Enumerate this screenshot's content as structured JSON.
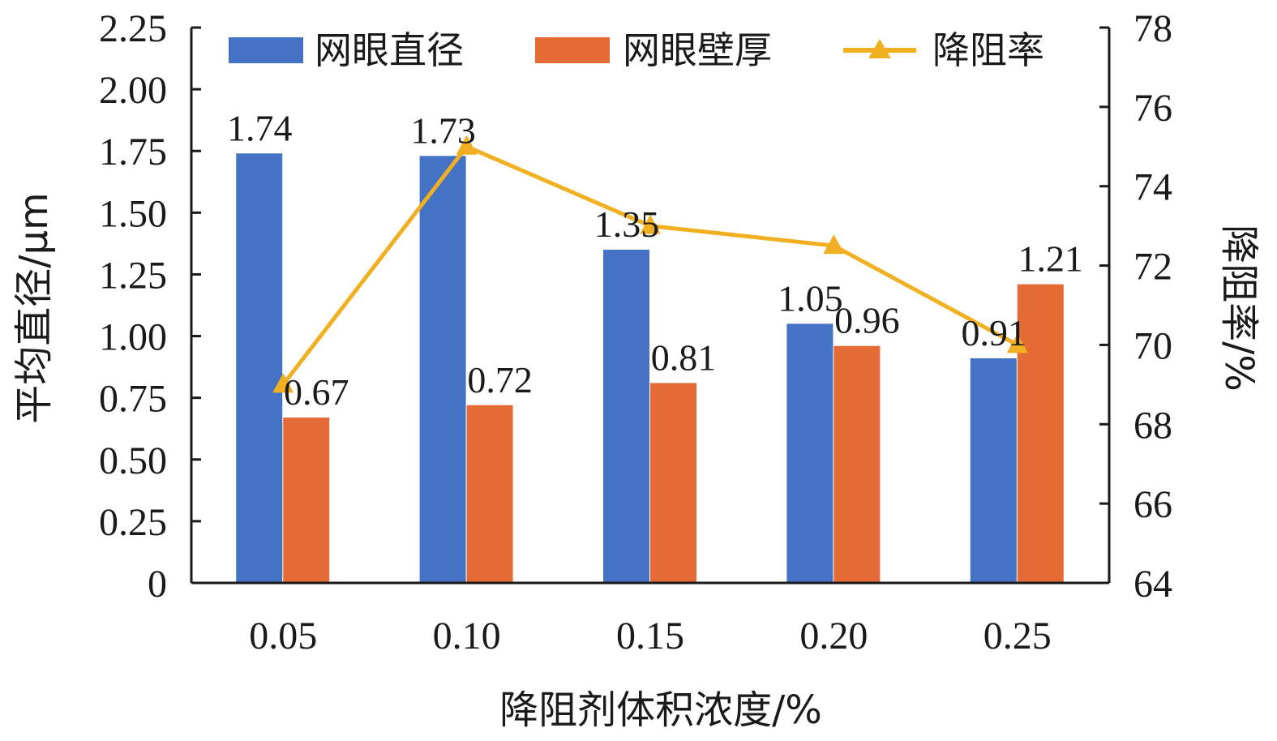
{
  "chart_data": {
    "type": "bar",
    "categories": [
      "0.05",
      "0.10",
      "0.15",
      "0.20",
      "0.25"
    ],
    "series": [
      {
        "name": "网眼直径",
        "kind": "bar",
        "axis": "left",
        "color": "#4472C4",
        "values": [
          1.74,
          1.73,
          1.35,
          1.05,
          0.91
        ],
        "labels": [
          "1.74",
          "1.73",
          "1.35",
          "1.05",
          "0.91"
        ]
      },
      {
        "name": "网眼壁厚",
        "kind": "bar",
        "axis": "left",
        "color": "#E46B35",
        "values": [
          0.67,
          0.72,
          0.81,
          0.96,
          1.21
        ],
        "labels": [
          "0.67",
          "0.72",
          "0.81",
          "0.96",
          "1.21"
        ]
      },
      {
        "name": "降阻率",
        "kind": "line",
        "axis": "right",
        "color": "#F0B022",
        "marker": "triangle",
        "values": [
          69.0,
          75.0,
          73.0,
          72.5,
          70.0
        ]
      }
    ],
    "xlabel": "降阻剂体积浓度/%",
    "ylabel": "平均直径/μm",
    "y2label": "降阻率/%",
    "ylim": [
      0,
      2.25
    ],
    "y2lim": [
      64,
      78
    ],
    "yticks": [
      "0",
      "0.25",
      "0.50",
      "0.75",
      "1.00",
      "1.25",
      "1.50",
      "1.75",
      "2.00",
      "2.25"
    ],
    "y2ticks": [
      "64",
      "66",
      "68",
      "70",
      "72",
      "74",
      "76",
      "78"
    ],
    "grid": false,
    "legend": "top"
  }
}
